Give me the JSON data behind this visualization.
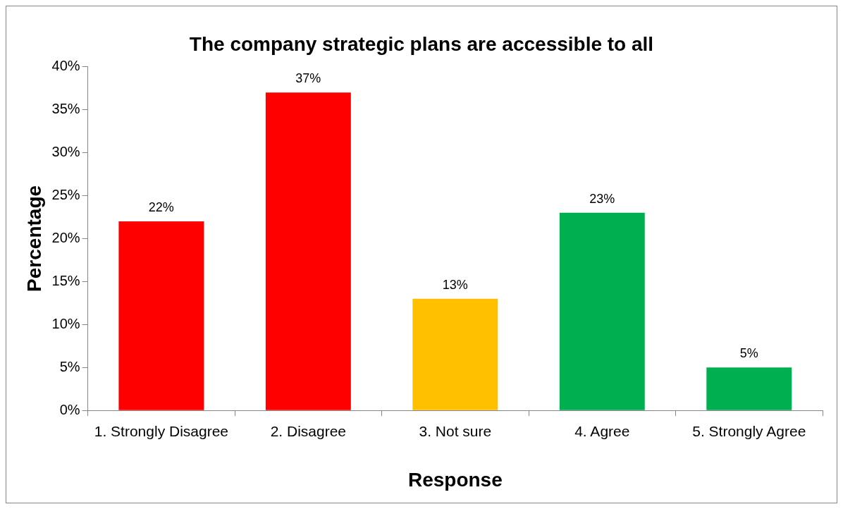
{
  "chart_data": {
    "type": "bar",
    "title": "The company strategic plans are accessible to all",
    "xlabel": "Response",
    "ylabel": "Percentage",
    "categories": [
      "1. Strongly Disagree",
      "2. Disagree",
      "3. Not sure",
      "4. Agree",
      "5. Strongly Agree"
    ],
    "values": [
      22,
      37,
      13,
      23,
      5
    ],
    "colors": [
      "#ff0000",
      "#ff0000",
      "#ffc000",
      "#00b050",
      "#00b050"
    ],
    "value_labels": [
      "22%",
      "37%",
      "13%",
      "23%",
      "5%"
    ],
    "ylim": [
      0,
      40
    ],
    "yticks": [
      {
        "value": 0,
        "label": "0%"
      },
      {
        "value": 5,
        "label": "5%"
      },
      {
        "value": 10,
        "label": "10%"
      },
      {
        "value": 15,
        "label": "15%"
      },
      {
        "value": 20,
        "label": "20%"
      },
      {
        "value": 25,
        "label": "25%"
      },
      {
        "value": 30,
        "label": "30%"
      },
      {
        "value": 35,
        "label": "35%"
      },
      {
        "value": 40,
        "label": "40%"
      }
    ],
    "grid": false,
    "legend": false
  }
}
